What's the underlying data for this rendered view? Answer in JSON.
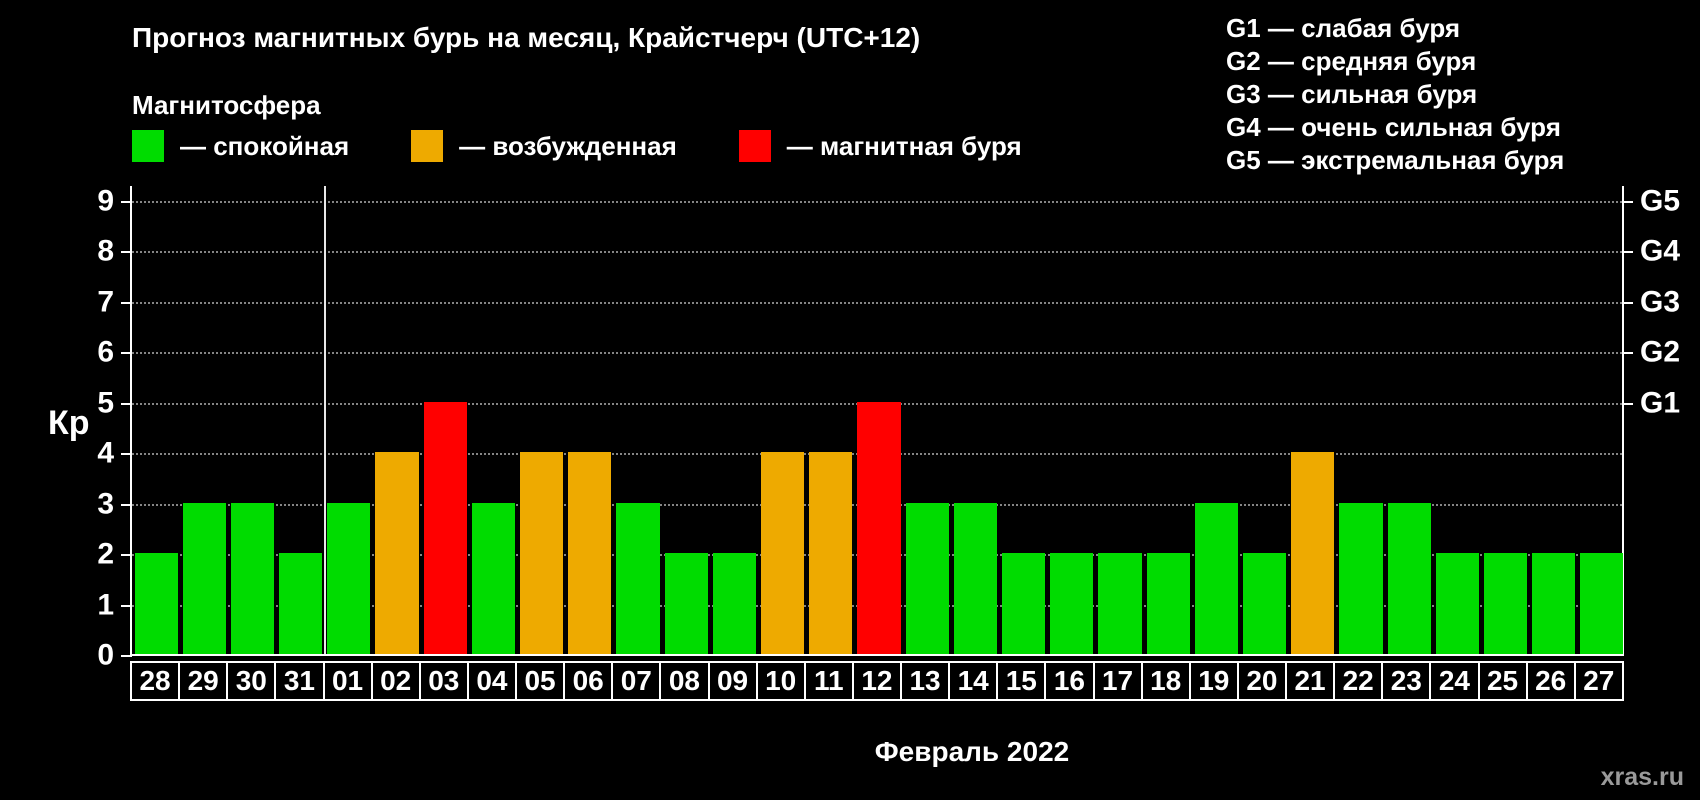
{
  "title": "Прогноз магнитных бурь на месяц, Крайстчерч (UTC+12)",
  "subtitle": "Магнитосфера",
  "legend": {
    "items": [
      {
        "label": "— спокойная",
        "state": "quiet"
      },
      {
        "label": "— возбужденная",
        "state": "excited"
      },
      {
        "label": "— магнитная буря",
        "state": "storm"
      }
    ]
  },
  "g_legend": [
    "G1 — слабая буря",
    "G2 — средняя буря",
    "G3 — сильная буря",
    "G4 — очень сильная буря",
    "G5 — экстремальная буря"
  ],
  "watermark": "xras.ru",
  "chart_data": {
    "type": "bar",
    "title": "Прогноз магнитных бурь на месяц, Крайстчерч (UTC+12)",
    "ylabel": "Кp",
    "xlabel": "Февраль 2022",
    "ylim": [
      0,
      9
    ],
    "grid": "dotted horizontal at each Kp level 1-9",
    "legend_position": "top",
    "y_ticks": [
      "0",
      "1",
      "2",
      "3",
      "4",
      "5",
      "6",
      "7",
      "8",
      "9"
    ],
    "right_ticks": [
      {
        "label": "G1",
        "kp": 5
      },
      {
        "label": "G2",
        "kp": 6
      },
      {
        "label": "G3",
        "kp": 7
      },
      {
        "label": "G4",
        "kp": 8
      },
      {
        "label": "G5",
        "kp": 9
      }
    ],
    "month_separator_after_index": 3,
    "colors": {
      "quiet": "#00dc00",
      "excited": "#eeaa00",
      "storm": "#ff0000"
    },
    "days": [
      {
        "label": "28",
        "kp": 2,
        "state": "quiet"
      },
      {
        "label": "29",
        "kp": 3,
        "state": "quiet"
      },
      {
        "label": "30",
        "kp": 3,
        "state": "quiet"
      },
      {
        "label": "31",
        "kp": 2,
        "state": "quiet"
      },
      {
        "label": "01",
        "kp": 3,
        "state": "quiet"
      },
      {
        "label": "02",
        "kp": 4,
        "state": "excited"
      },
      {
        "label": "03",
        "kp": 5,
        "state": "storm"
      },
      {
        "label": "04",
        "kp": 3,
        "state": "quiet"
      },
      {
        "label": "05",
        "kp": 4,
        "state": "excited"
      },
      {
        "label": "06",
        "kp": 4,
        "state": "excited"
      },
      {
        "label": "07",
        "kp": 3,
        "state": "quiet"
      },
      {
        "label": "08",
        "kp": 2,
        "state": "quiet"
      },
      {
        "label": "09",
        "kp": 2,
        "state": "quiet"
      },
      {
        "label": "10",
        "kp": 4,
        "state": "excited"
      },
      {
        "label": "11",
        "kp": 4,
        "state": "excited"
      },
      {
        "label": "12",
        "kp": 5,
        "state": "storm"
      },
      {
        "label": "13",
        "kp": 3,
        "state": "quiet"
      },
      {
        "label": "14",
        "kp": 3,
        "state": "quiet"
      },
      {
        "label": "15",
        "kp": 2,
        "state": "quiet"
      },
      {
        "label": "16",
        "kp": 2,
        "state": "quiet"
      },
      {
        "label": "17",
        "kp": 2,
        "state": "quiet"
      },
      {
        "label": "18",
        "kp": 2,
        "state": "quiet"
      },
      {
        "label": "19",
        "kp": 3,
        "state": "quiet"
      },
      {
        "label": "20",
        "kp": 2,
        "state": "quiet"
      },
      {
        "label": "21",
        "kp": 4,
        "state": "excited"
      },
      {
        "label": "22",
        "kp": 3,
        "state": "quiet"
      },
      {
        "label": "23",
        "kp": 3,
        "state": "quiet"
      },
      {
        "label": "24",
        "kp": 2,
        "state": "quiet"
      },
      {
        "label": "25",
        "kp": 2,
        "state": "quiet"
      },
      {
        "label": "26",
        "kp": 2,
        "state": "quiet"
      },
      {
        "label": "27",
        "kp": 2,
        "state": "quiet"
      }
    ]
  }
}
